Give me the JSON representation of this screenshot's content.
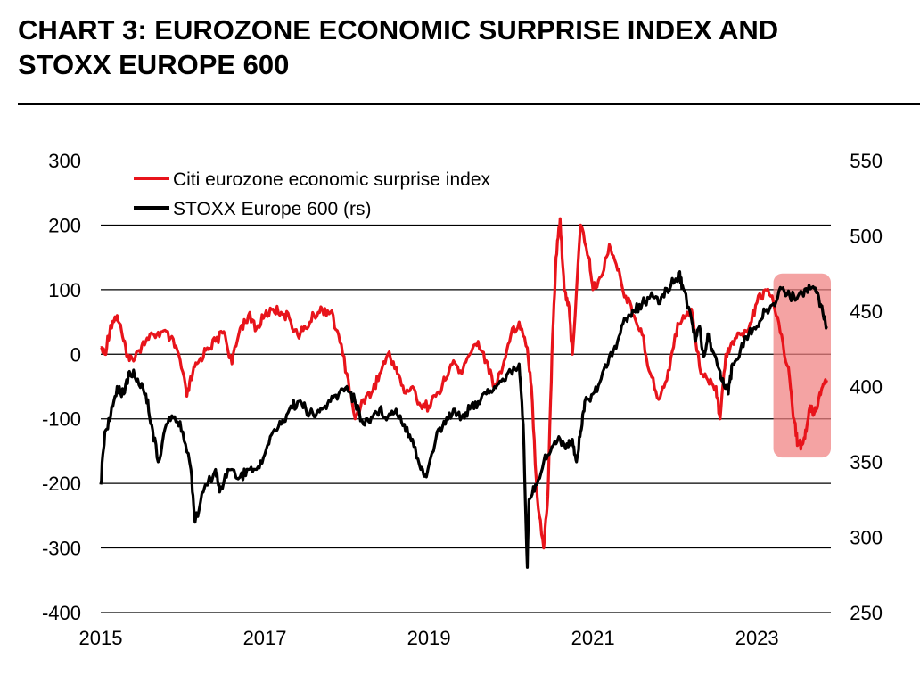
{
  "header": {
    "title_line1": "CHART 3: EUROZONE ECONOMIC SURPRISE INDEX AND",
    "title_line2": "STOXX EUROPE 600"
  },
  "chart_data": {
    "type": "line",
    "title": "CHART 3: EUROZONE ECONOMIC SURPRISE INDEX AND STOXX EUROPE 600",
    "xlim": [
      2015.0,
      2023.9
    ],
    "x_ticks": [
      2015,
      2017,
      2019,
      2021,
      2023
    ],
    "x_tick_labels": [
      "2015",
      "2017",
      "2019",
      "2021",
      "2023"
    ],
    "y_left": {
      "ylim": [
        -400,
        300
      ],
      "ticks": [
        300,
        200,
        100,
        0,
        -100,
        -200,
        -300,
        -400
      ],
      "tick_labels": [
        "300",
        "200",
        "100",
        "0",
        "-100",
        "-200",
        "-300",
        "-400"
      ]
    },
    "y_right": {
      "ylim": [
        250,
        550
      ],
      "ticks": [
        550,
        500,
        450,
        400,
        350,
        300,
        250
      ],
      "tick_labels": [
        "550",
        "500",
        "450",
        "400",
        "350",
        "300",
        "250"
      ]
    },
    "grid": "horizontal",
    "legend_position": "top-left",
    "colors": {
      "surprise": "#e8141b",
      "stoxx": "#000000",
      "highlight": "#f08080"
    },
    "series": [
      {
        "name": "Citi eurozone economic surprise index",
        "axis": "left",
        "x": [
          2015.0,
          2015.05,
          2015.12,
          2015.2,
          2015.28,
          2015.35,
          2015.45,
          2015.55,
          2015.65,
          2015.75,
          2015.85,
          2015.95,
          2016.05,
          2016.12,
          2016.2,
          2016.3,
          2016.4,
          2016.5,
          2016.6,
          2016.7,
          2016.8,
          2016.9,
          2017.0,
          2017.1,
          2017.2,
          2017.3,
          2017.4,
          2017.5,
          2017.6,
          2017.7,
          2017.8,
          2017.9,
          2018.0,
          2018.1,
          2018.2,
          2018.3,
          2018.4,
          2018.5,
          2018.6,
          2018.7,
          2018.8,
          2018.9,
          2019.0,
          2019.1,
          2019.2,
          2019.3,
          2019.4,
          2019.5,
          2019.6,
          2019.7,
          2019.8,
          2019.9,
          2020.0,
          2020.1,
          2020.2,
          2020.25,
          2020.32,
          2020.4,
          2020.45,
          2020.5,
          2020.55,
          2020.6,
          2020.65,
          2020.7,
          2020.75,
          2020.85,
          2020.95,
          2021.0,
          2021.1,
          2021.2,
          2021.3,
          2021.4,
          2021.5,
          2021.6,
          2021.7,
          2021.8,
          2021.9,
          2022.0,
          2022.1,
          2022.2,
          2022.3,
          2022.4,
          2022.5,
          2022.55,
          2022.62,
          2022.7,
          2022.8,
          2022.9,
          2023.0,
          2023.1,
          2023.2,
          2023.3,
          2023.4,
          2023.45,
          2023.5,
          2023.55,
          2023.6,
          2023.65,
          2023.7,
          2023.75,
          2023.8,
          2023.85
        ],
        "values": [
          10,
          0,
          45,
          60,
          20,
          -10,
          5,
          20,
          30,
          35,
          25,
          0,
          -65,
          -30,
          -10,
          10,
          20,
          35,
          -15,
          40,
          60,
          40,
          60,
          70,
          65,
          55,
          30,
          40,
          60,
          70,
          65,
          30,
          -30,
          -100,
          -70,
          -60,
          -30,
          0,
          -20,
          -60,
          -50,
          -80,
          -80,
          -60,
          -40,
          -10,
          -30,
          0,
          20,
          -10,
          -50,
          -20,
          30,
          50,
          10,
          -50,
          -220,
          -300,
          -220,
          0,
          150,
          210,
          100,
          80,
          0,
          200,
          150,
          100,
          120,
          170,
          130,
          90,
          60,
          30,
          -30,
          -70,
          -40,
          30,
          60,
          70,
          -20,
          -40,
          -50,
          -100,
          0,
          20,
          30,
          40,
          80,
          100,
          80,
          30,
          -40,
          -100,
          -140,
          -140,
          -120,
          -80,
          -90,
          -70,
          -50,
          -40
        ]
      },
      {
        "name": "STOXX Europe 600 (rs)",
        "axis": "right",
        "x": [
          2015.0,
          2015.05,
          2015.12,
          2015.2,
          2015.28,
          2015.35,
          2015.45,
          2015.55,
          2015.62,
          2015.7,
          2015.8,
          2015.9,
          2016.0,
          2016.1,
          2016.15,
          2016.25,
          2016.4,
          2016.45,
          2016.55,
          2016.7,
          2016.8,
          2016.9,
          2017.0,
          2017.1,
          2017.2,
          2017.3,
          2017.4,
          2017.5,
          2017.6,
          2017.7,
          2017.8,
          2017.9,
          2018.0,
          2018.1,
          2018.2,
          2018.3,
          2018.4,
          2018.5,
          2018.6,
          2018.7,
          2018.8,
          2018.9,
          2018.97,
          2019.1,
          2019.2,
          2019.3,
          2019.4,
          2019.5,
          2019.6,
          2019.7,
          2019.8,
          2019.9,
          2020.0,
          2020.1,
          2020.15,
          2020.2,
          2020.22,
          2020.3,
          2020.4,
          2020.5,
          2020.6,
          2020.7,
          2020.75,
          2020.8,
          2020.85,
          2020.9,
          2021.0,
          2021.1,
          2021.2,
          2021.3,
          2021.4,
          2021.5,
          2021.6,
          2021.7,
          2021.8,
          2021.9,
          2022.0,
          2022.05,
          2022.1,
          2022.2,
          2022.25,
          2022.3,
          2022.35,
          2022.4,
          2022.45,
          2022.55,
          2022.6,
          2022.65,
          2022.7,
          2022.8,
          2022.9,
          2023.0,
          2023.1,
          2023.2,
          2023.3,
          2023.4,
          2023.5,
          2023.6,
          2023.7,
          2023.75,
          2023.8,
          2023.85
        ],
        "values": [
          335,
          370,
          380,
          400,
          395,
          410,
          405,
          395,
          375,
          350,
          375,
          380,
          370,
          345,
          310,
          330,
          345,
          330,
          345,
          340,
          345,
          345,
          355,
          370,
          375,
          385,
          390,
          385,
          380,
          385,
          390,
          395,
          400,
          390,
          375,
          380,
          385,
          380,
          385,
          375,
          365,
          345,
          340,
          370,
          375,
          385,
          380,
          385,
          390,
          395,
          400,
          405,
          410,
          415,
          375,
          280,
          325,
          335,
          350,
          360,
          365,
          360,
          365,
          350,
          370,
          390,
          395,
          405,
          420,
          430,
          445,
          450,
          455,
          460,
          455,
          465,
          470,
          475,
          465,
          445,
          430,
          440,
          420,
          435,
          425,
          410,
          400,
          395,
          415,
          425,
          435,
          440,
          450,
          455,
          465,
          460,
          460,
          465,
          465,
          460,
          450,
          440
        ]
      }
    ],
    "highlight_region": {
      "x_range": [
        2023.2,
        2023.9
      ],
      "y_range_left": [
        -160,
        125
      ]
    }
  }
}
